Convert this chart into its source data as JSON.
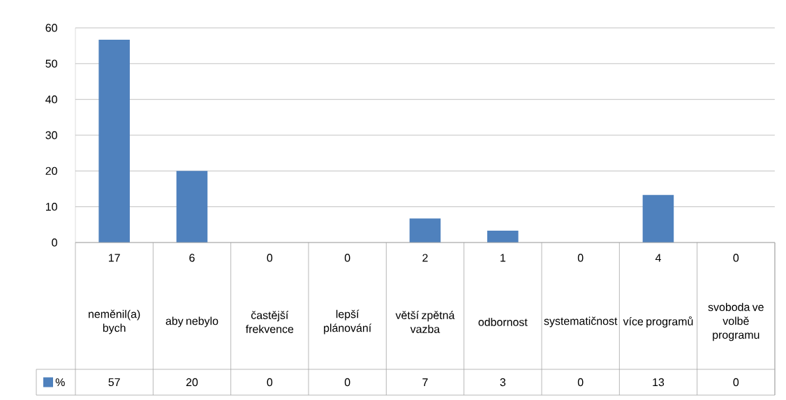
{
  "chart_data": {
    "type": "bar",
    "categories": [
      "neměnil(a) bych",
      "aby nebylo",
      "častější frekvence",
      "lepší plánování",
      "větší zpětná vazba",
      "odbornost",
      "systematičnost",
      "více programů",
      "svoboda ve volbě programu"
    ],
    "series": [
      {
        "name": "%",
        "color": "#4f81bd",
        "values": [
          56.7,
          20,
          0,
          0,
          6.7,
          3.3,
          0,
          13.3,
          0
        ],
        "value_labels": [
          "57",
          "20",
          "0",
          "0",
          "7",
          "3",
          "0",
          "13",
          "0"
        ]
      }
    ],
    "annotations": [
      "17",
      "6",
      "0",
      "0",
      "2",
      "1",
      "0",
      "4",
      "0"
    ],
    "ylim": [
      0,
      60
    ],
    "yticks": [
      0,
      10,
      20,
      30,
      40,
      50,
      60
    ],
    "grid": "y",
    "legend": "bottom"
  }
}
